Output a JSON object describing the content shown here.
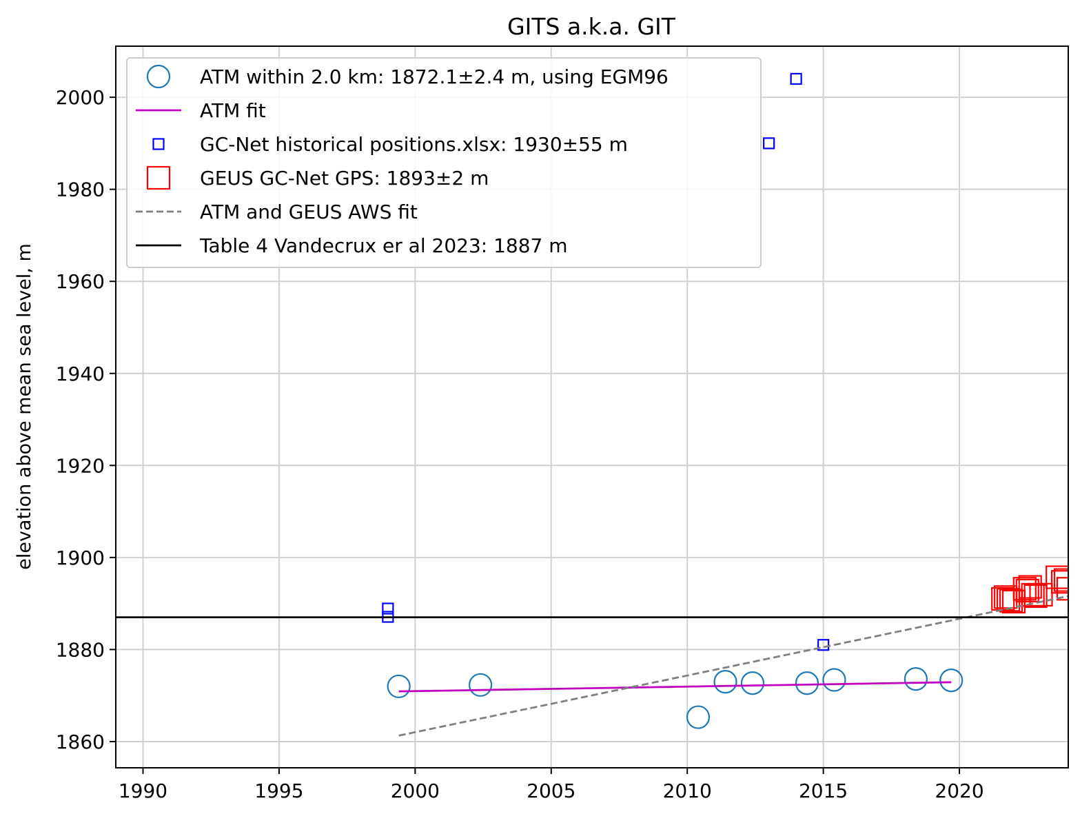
{
  "chart_data": {
    "type": "scatter",
    "title": "GITS a.k.a. GIT",
    "xlabel": "",
    "ylabel": "elevation above mean sea level, m",
    "xlim": [
      1989.0,
      2024.0
    ],
    "ylim": [
      1854.3,
      2011.1
    ],
    "xticks": [
      1990,
      1995,
      2000,
      2005,
      2010,
      2015,
      2020
    ],
    "yticks": [
      1860,
      1880,
      1900,
      1920,
      1940,
      1960,
      1980,
      2000
    ],
    "grid": true,
    "legend_position": "upper-left",
    "series": [
      {
        "name": "ATM within 2.0 km: 1872.1±2.4 m, using EGM96",
        "kind": "scatter",
        "marker": "circle",
        "color": "#1f77b4",
        "points": [
          [
            1999.4,
            1872.0
          ],
          [
            2002.4,
            1872.3
          ],
          [
            2010.4,
            1865.3
          ],
          [
            2011.4,
            1873.0
          ],
          [
            2012.4,
            1872.7
          ],
          [
            2014.4,
            1872.7
          ],
          [
            2015.4,
            1873.4
          ],
          [
            2018.4,
            1873.6
          ],
          [
            2019.7,
            1873.3
          ]
        ]
      },
      {
        "name": "ATM fit",
        "kind": "line",
        "color": "#bf00bf",
        "points": [
          [
            1999.4,
            1870.9
          ],
          [
            2019.7,
            1872.9
          ]
        ]
      },
      {
        "name": "GC-Net historical positions.xlsx: 1930±55 m",
        "kind": "scatter",
        "marker": "square-small",
        "color": "#0000ff",
        "points": [
          [
            1999.0,
            1888.9
          ],
          [
            1999.0,
            1887.1
          ],
          [
            2013.0,
            1990.0
          ],
          [
            2014.0,
            2004.0
          ],
          [
            2015.0,
            1881.0
          ]
        ]
      },
      {
        "name": "GEUS GC-Net GPS: 1893±2 m",
        "kind": "scatter",
        "marker": "square-large",
        "color": "#ff0000",
        "points": [
          [
            2021.6,
            1891.0
          ],
          [
            2021.7,
            1891.4
          ],
          [
            2021.8,
            1890.8
          ],
          [
            2021.9,
            1890.6
          ],
          [
            2022.0,
            1890.4
          ],
          [
            2022.4,
            1893.2
          ],
          [
            2022.5,
            1892.8
          ],
          [
            2022.6,
            1893.6
          ],
          [
            2022.7,
            1891.9
          ],
          [
            2022.8,
            1891.6
          ],
          [
            2023.0,
            1891.9
          ],
          [
            2023.6,
            1895.7
          ],
          [
            2023.8,
            1894.7
          ],
          [
            2023.9,
            1895.1
          ],
          [
            2024.0,
            1893.2
          ]
        ]
      },
      {
        "name": "ATM and GEUS AWS fit",
        "kind": "line",
        "dash": "dashed",
        "color": "#808080",
        "points": [
          [
            1999.4,
            1861.3
          ],
          [
            2024.0,
            1891.6
          ]
        ]
      },
      {
        "name": "Table 4 Vandecrux er al 2023: 1887 m",
        "kind": "hline",
        "color": "#000000",
        "value": 1887
      }
    ]
  }
}
